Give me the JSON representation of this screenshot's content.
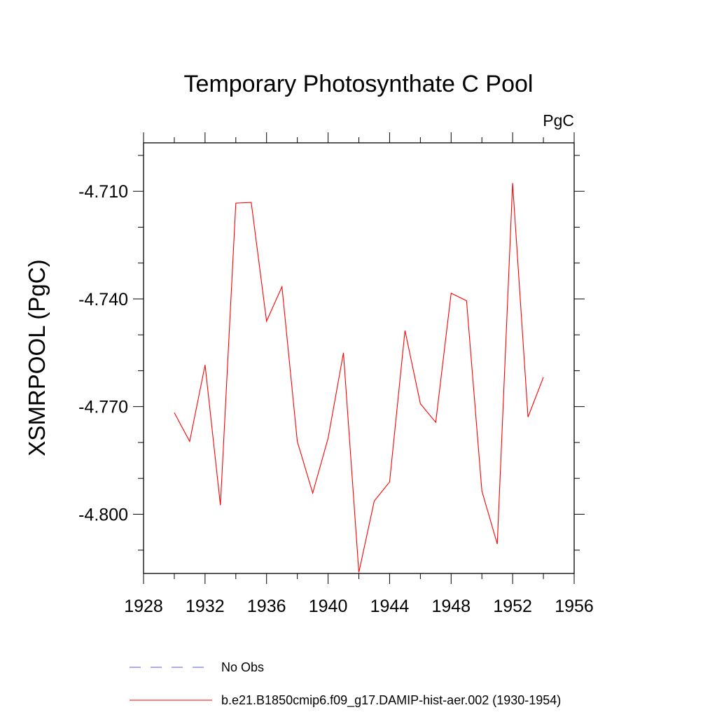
{
  "chart_data": {
    "type": "line",
    "title": "Temporary Photosynthate C Pool",
    "units_label": "PgC",
    "ylabel": "XSMRPOOL  (PgC)",
    "xlabel": "",
    "xlim": [
      1928,
      1956
    ],
    "ylim": [
      -4.8165,
      -4.6965
    ],
    "x_ticks": [
      1928,
      1932,
      1936,
      1940,
      1944,
      1948,
      1952,
      1956
    ],
    "x_tick_labels": [
      "1928",
      "1932",
      "1936",
      "1940",
      "1944",
      "1948",
      "1952",
      "1956"
    ],
    "y_ticks": [
      -4.71,
      -4.74,
      -4.77,
      -4.8
    ],
    "y_tick_labels": [
      "-4.710",
      "-4.740",
      "-4.770",
      "-4.800"
    ],
    "x_minor_step": 2,
    "y_minor_step": 0.01,
    "grid": false,
    "legend_position": "bottom",
    "series": [
      {
        "name": "No Obs",
        "color": "#5a5acd",
        "dash": "dashed",
        "values": []
      },
      {
        "name": "b.e21.B1850cmip6.f09_g17.DAMIP-hist-aer.002 (1930-1954)",
        "color": "#ff0000",
        "dash": "solid",
        "x": [
          1930,
          1931,
          1932,
          1933,
          1934,
          1935,
          1936,
          1937,
          1938,
          1939,
          1940,
          1941,
          1942,
          1943,
          1944,
          1945,
          1946,
          1947,
          1948,
          1949,
          1950,
          1951,
          1952,
          1953,
          1954
        ],
        "values": [
          -4.7717,
          -4.7797,
          -4.7584,
          -4.7975,
          -4.7133,
          -4.7131,
          -4.7462,
          -4.7366,
          -4.7797,
          -4.7941,
          -4.7788,
          -4.755,
          -4.8162,
          -4.7963,
          -4.791,
          -4.7488,
          -4.7692,
          -4.7744,
          -4.7384,
          -4.7405,
          -4.7935,
          -4.8083,
          -4.7077,
          -4.7729,
          -4.7618
        ]
      }
    ]
  }
}
